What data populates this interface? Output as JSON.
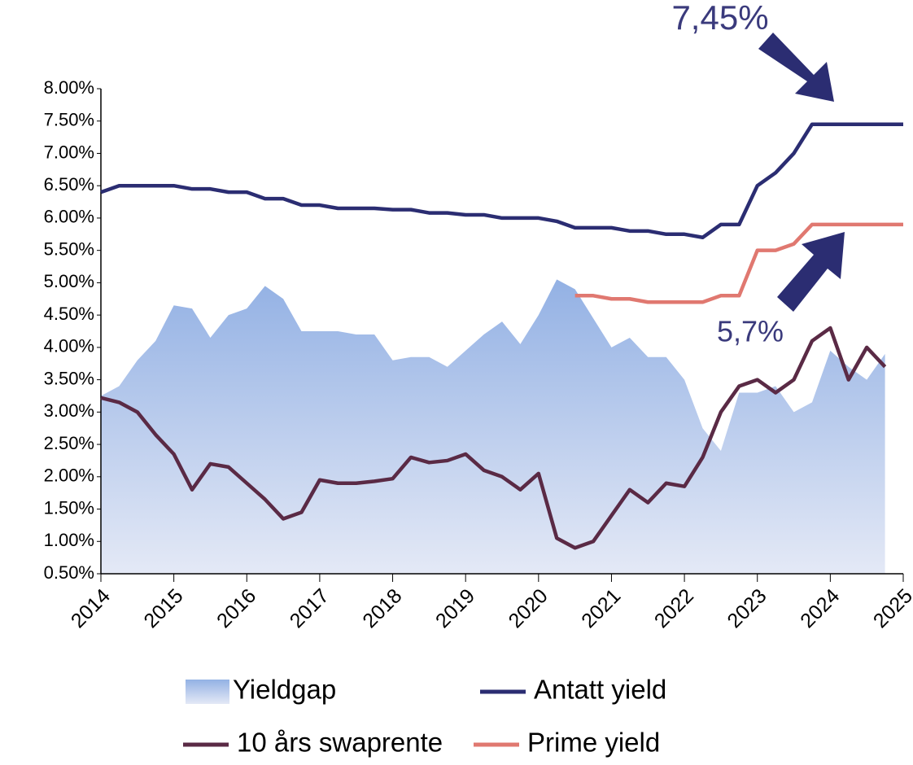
{
  "chart_data": {
    "type": "line",
    "annotations": [
      "7,45%",
      "5,7%"
    ],
    "x": [
      2014,
      2014.25,
      2014.5,
      2014.75,
      2015,
      2015.25,
      2015.5,
      2015.75,
      2016,
      2016.25,
      2016.5,
      2016.75,
      2017,
      2017.25,
      2017.5,
      2017.75,
      2018,
      2018.25,
      2018.5,
      2018.75,
      2019,
      2019.25,
      2019.5,
      2019.75,
      2020,
      2020.25,
      2020.5,
      2020.75,
      2021,
      2021.25,
      2021.5,
      2021.75,
      2022,
      2022.25,
      2022.5,
      2022.75,
      2023,
      2023.25,
      2023.5,
      2023.75,
      2024,
      2024.25,
      2024.5,
      2024.75,
      2025
    ],
    "series": [
      {
        "name": "Yieldgap",
        "kind": "area",
        "color": "#a4bde8",
        "values": [
          3.25,
          3.4,
          3.8,
          4.1,
          4.65,
          4.6,
          4.15,
          4.5,
          4.6,
          4.95,
          4.75,
          4.25,
          4.25,
          4.25,
          4.2,
          4.2,
          3.8,
          3.85,
          3.85,
          3.7,
          3.95,
          4.2,
          4.4,
          4.05,
          4.5,
          5.05,
          4.9,
          4.45,
          4.0,
          4.15,
          3.85,
          3.85,
          3.5,
          2.75,
          2.4,
          3.3,
          3.3,
          3.4,
          3.0,
          3.15,
          3.95,
          3.7,
          3.5,
          3.9,
          null
        ]
      },
      {
        "name": "Antatt yield",
        "kind": "line",
        "color": "#2b2d72",
        "values": [
          6.4,
          6.5,
          6.5,
          6.5,
          6.5,
          6.45,
          6.45,
          6.4,
          6.4,
          6.3,
          6.3,
          6.2,
          6.2,
          6.15,
          6.15,
          6.15,
          6.13,
          6.13,
          6.08,
          6.08,
          6.05,
          6.05,
          6.0,
          6.0,
          6.0,
          5.95,
          5.85,
          5.85,
          5.85,
          5.8,
          5.8,
          5.75,
          5.75,
          5.7,
          5.9,
          5.9,
          6.5,
          6.7,
          7.0,
          7.45,
          7.45,
          7.45,
          7.45,
          7.45,
          7.45
        ]
      },
      {
        "name": "10 års swaprente",
        "kind": "line",
        "color": "#5a2a45",
        "values": [
          3.22,
          3.15,
          3.0,
          2.65,
          2.35,
          1.8,
          2.2,
          2.15,
          1.9,
          1.65,
          1.35,
          1.45,
          1.95,
          1.9,
          1.9,
          1.93,
          1.97,
          2.3,
          2.22,
          2.25,
          2.35,
          2.1,
          2.0,
          1.8,
          2.05,
          1.05,
          0.9,
          1.0,
          1.4,
          1.8,
          1.6,
          1.9,
          1.85,
          2.3,
          3.0,
          3.4,
          3.5,
          3.3,
          3.5,
          4.1,
          4.3,
          3.5,
          4.0,
          3.7,
          null
        ]
      },
      {
        "name": "Prime yield",
        "kind": "line",
        "color": "#e07870",
        "values": [
          null,
          null,
          null,
          null,
          null,
          null,
          null,
          null,
          null,
          null,
          null,
          null,
          null,
          null,
          null,
          null,
          null,
          null,
          null,
          null,
          null,
          null,
          null,
          null,
          null,
          null,
          4.8,
          4.8,
          4.75,
          4.75,
          4.7,
          4.7,
          4.7,
          4.7,
          4.8,
          4.8,
          5.5,
          5.5,
          5.6,
          5.9,
          5.9,
          5.9,
          5.9,
          5.9,
          5.9
        ]
      }
    ],
    "xlim": [
      2014,
      2025
    ],
    "xticks": [
      2014,
      2015,
      2016,
      2017,
      2018,
      2019,
      2020,
      2021,
      2022,
      2023,
      2024,
      2025
    ],
    "ylim": [
      0.5,
      8.0
    ],
    "yticks": [
      {
        "value": 0.5,
        "label": "0.50%"
      },
      {
        "value": 1.0,
        "label": "1.00%"
      },
      {
        "value": 1.5,
        "label": "1.50%"
      },
      {
        "value": 2.0,
        "label": "2.00%"
      },
      {
        "value": 2.5,
        "label": "2.50%"
      },
      {
        "value": 3.0,
        "label": "3.00%"
      },
      {
        "value": 3.5,
        "label": "3.50%"
      },
      {
        "value": 4.0,
        "label": "4.00%"
      },
      {
        "value": 4.5,
        "label": "4.50%"
      },
      {
        "value": 5.0,
        "label": "5.00%"
      },
      {
        "value": 5.5,
        "label": "5.50%"
      },
      {
        "value": 6.0,
        "label": "6.00%"
      },
      {
        "value": 6.5,
        "label": "6.50%"
      },
      {
        "value": 7.0,
        "label": "7.00%"
      },
      {
        "value": 7.5,
        "label": "7.50%"
      },
      {
        "value": 8.0,
        "label": "8.00%"
      }
    ],
    "legend": "bottom"
  }
}
